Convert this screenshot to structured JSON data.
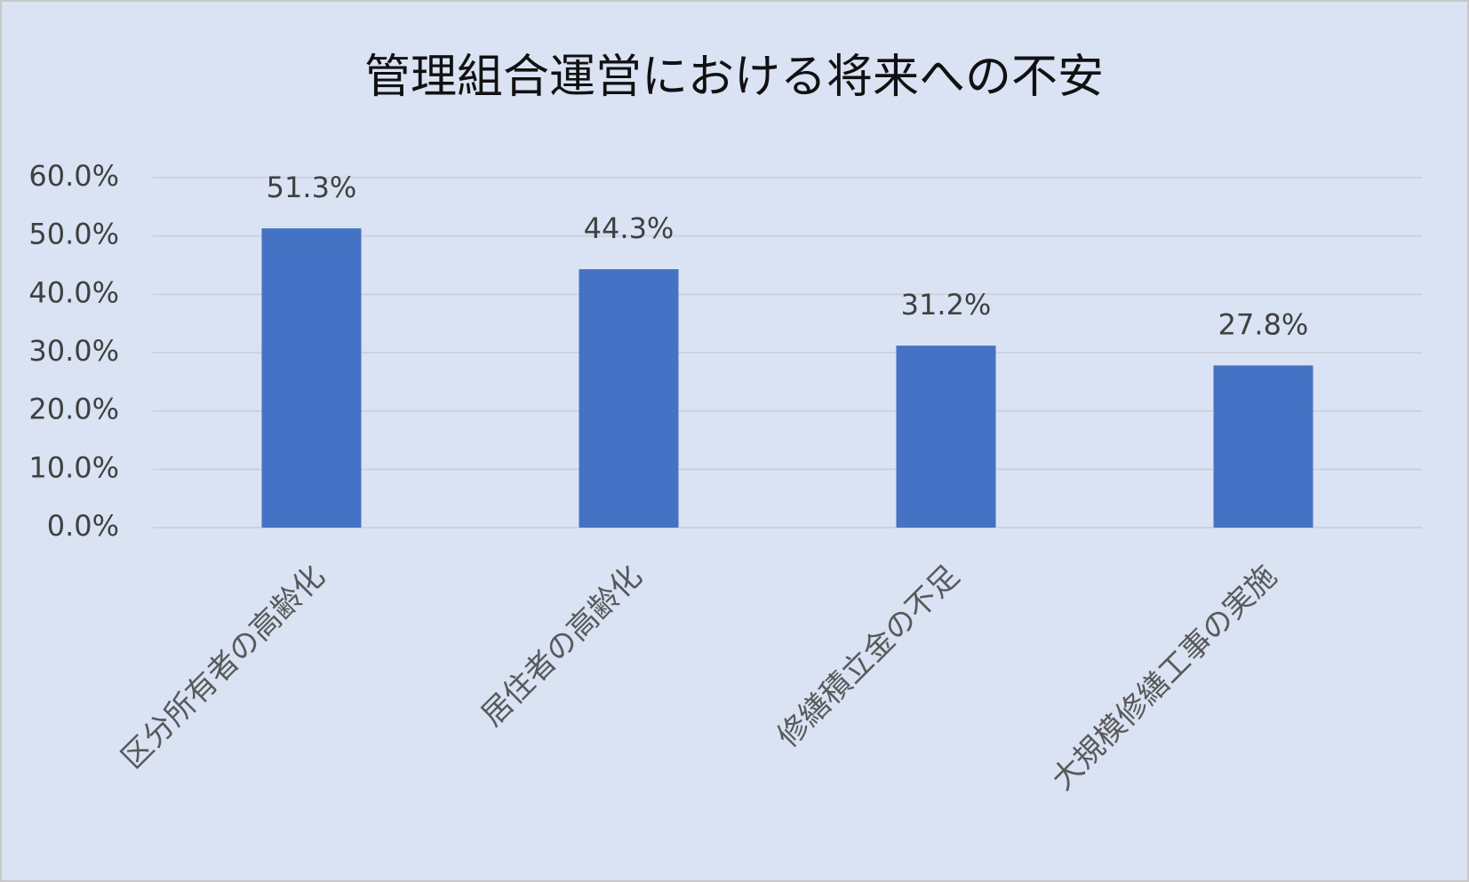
{
  "chart_data": {
    "type": "bar",
    "title": "管理組合運営における将来への不安",
    "categories": [
      "区分所有者の高齢化",
      "居住者の高齢化",
      "修繕積立金の不足",
      "大規模修繕工事の実施"
    ],
    "values": [
      51.3,
      44.3,
      31.2,
      27.8
    ],
    "value_labels": [
      "51.3%",
      "44.3%",
      "31.2%",
      "27.8%"
    ],
    "color": "#4472c4",
    "ylim": [
      0,
      60
    ],
    "yticks": [
      {
        "value": 0,
        "label": "0.0%"
      },
      {
        "value": 10,
        "label": "10.0%"
      },
      {
        "value": 20,
        "label": "20.0%"
      },
      {
        "value": 30,
        "label": "30.0%"
      },
      {
        "value": 40,
        "label": "40.0%"
      },
      {
        "value": 50,
        "label": "50.0%"
      },
      {
        "value": 60,
        "label": "60.0%"
      }
    ],
    "grid": true
  }
}
